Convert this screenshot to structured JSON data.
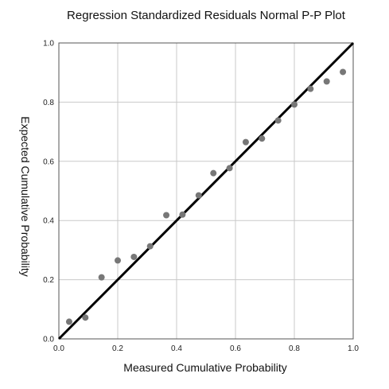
{
  "chart_data": {
    "type": "scatter",
    "title": "Regression Standardized Residuals Normal P-P Plot",
    "xlabel": "Measured Cumulative Probability",
    "ylabel": "Expected Cumulative Probability",
    "xlim": [
      0.0,
      1.0
    ],
    "ylim": [
      0.0,
      1.0
    ],
    "xticks": [
      0.0,
      0.2,
      0.4,
      0.6,
      0.8,
      1.0
    ],
    "yticks": [
      0.0,
      0.2,
      0.4,
      0.6,
      0.8,
      1.0
    ],
    "xtick_labels": [
      "0.0",
      "0.2",
      "0.4",
      "0.6",
      "0.8",
      "1.0"
    ],
    "ytick_labels": [
      "0.0",
      "0.2",
      "0.4",
      "0.6",
      "0.8",
      "1.0"
    ],
    "grid": true,
    "reference_line": {
      "x": [
        0.0,
        1.0
      ],
      "y": [
        0.0,
        1.0
      ],
      "color": "#000000"
    },
    "series": [
      {
        "color": "#777777",
        "points": [
          {
            "x": 0.035,
            "y": 0.058
          },
          {
            "x": 0.09,
            "y": 0.072
          },
          {
            "x": 0.145,
            "y": 0.208
          },
          {
            "x": 0.2,
            "y": 0.265
          },
          {
            "x": 0.255,
            "y": 0.277
          },
          {
            "x": 0.31,
            "y": 0.313
          },
          {
            "x": 0.365,
            "y": 0.418
          },
          {
            "x": 0.42,
            "y": 0.42
          },
          {
            "x": 0.475,
            "y": 0.485
          },
          {
            "x": 0.525,
            "y": 0.56
          },
          {
            "x": 0.58,
            "y": 0.577
          },
          {
            "x": 0.635,
            "y": 0.665
          },
          {
            "x": 0.69,
            "y": 0.677
          },
          {
            "x": 0.745,
            "y": 0.738
          },
          {
            "x": 0.8,
            "y": 0.792
          },
          {
            "x": 0.855,
            "y": 0.845
          },
          {
            "x": 0.91,
            "y": 0.87
          },
          {
            "x": 0.965,
            "y": 0.902
          }
        ]
      }
    ]
  }
}
